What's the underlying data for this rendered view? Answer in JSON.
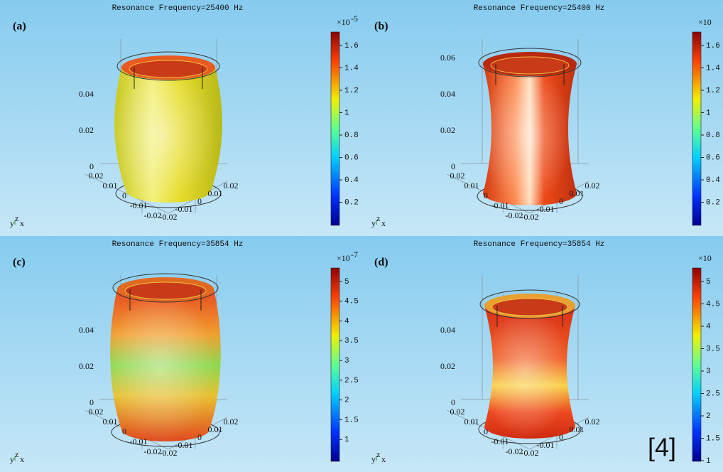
{
  "panels": [
    {
      "label": "(a)",
      "title": "Resonance Frequency=25400 Hz",
      "colorbar": {
        "base": "×10",
        "exponent": "-5",
        "ticks": [
          "1.6",
          "1.4",
          "1.2",
          "1",
          "0.8",
          "0.6",
          "0.4",
          "0.2"
        ]
      },
      "z_ticks": [
        "0.04",
        "0.02",
        "0"
      ],
      "y_ticks": [
        "0.02",
        "0.01",
        "0",
        "-0.01",
        "-0.02"
      ],
      "x_ticks": [
        "0.02",
        "0.01",
        "0",
        "-0.01",
        "-0.02"
      ],
      "triad": [
        "y",
        "z",
        "x"
      ]
    },
    {
      "label": "(b)",
      "title": "Resonance Frequency=25400 Hz",
      "colorbar": {
        "base": "×10",
        "ticks": [
          "1.6",
          "1.4",
          "1.2",
          "1",
          "0.8",
          "0.6",
          "0.4",
          "0.2"
        ]
      },
      "z_ticks": [
        "0.06",
        "0.04",
        "0.02",
        "0"
      ],
      "y_ticks": [
        "0.02",
        "0.01",
        "0",
        "-0.01",
        "-0.02"
      ],
      "x_ticks": [
        "0.02",
        "0.01",
        "0",
        "-0.01",
        "-0.02"
      ],
      "triad": [
        "y",
        "z",
        "x"
      ]
    },
    {
      "label": "(c)",
      "title": "Resonance Frequency=35854 Hz",
      "colorbar": {
        "base": "×10",
        "exponent": "-7",
        "ticks": [
          "5",
          "4.5",
          "4",
          "3.5",
          "3",
          "2.5",
          "2",
          "1.5",
          "1"
        ]
      },
      "z_ticks": [
        "0.04",
        "0.02",
        "0"
      ],
      "y_ticks": [
        "0.02",
        "0.01",
        "0",
        "-0.01",
        "-0.02"
      ],
      "x_ticks": [
        "0.02",
        "0.01",
        "0",
        "-0.01",
        "-0.02"
      ],
      "triad": [
        "y",
        "z",
        "x"
      ]
    },
    {
      "label": "(d)",
      "title": "Resonance Frequency=35854 Hz",
      "colorbar": {
        "base": "×10",
        "ticks": [
          "5",
          "4.5",
          "4",
          "3.5",
          "3",
          "2.5",
          "2",
          "1.5",
          "1"
        ]
      },
      "z_ticks": [
        "0.04",
        "0.02",
        "0"
      ],
      "y_ticks": [
        "0.02",
        "0.01",
        "0",
        "-0.01",
        "-0.02"
      ],
      "x_ticks": [
        "0.02",
        "0.01",
        "0",
        "-0.01",
        "-0.02"
      ],
      "triad": [
        "y",
        "z",
        "x"
      ]
    }
  ],
  "citation": "[4]"
}
